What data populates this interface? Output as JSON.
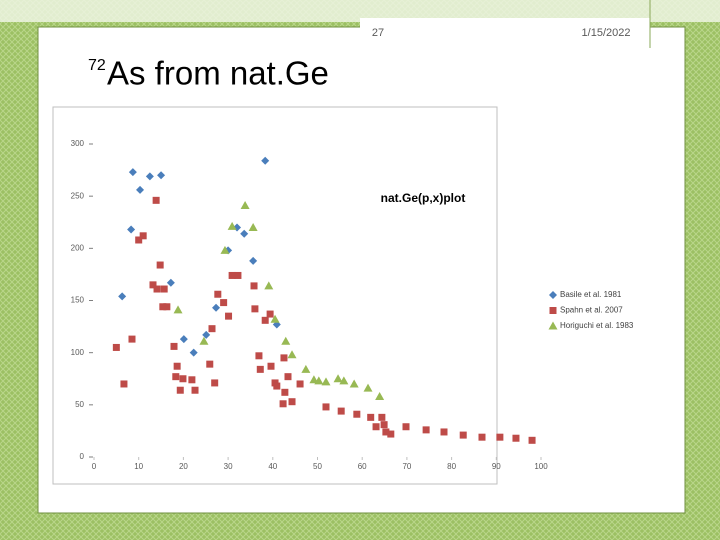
{
  "slide": {
    "number": "27",
    "date": "1/15/2022",
    "title_superscript": "72",
    "title": "As from nat.Ge"
  },
  "chart_data": {
    "type": "scatter",
    "title": "nat.Ge(p,x)plot",
    "xlim": [
      0,
      100
    ],
    "xticks": [
      0,
      10,
      20,
      30,
      40,
      50,
      60,
      70,
      80,
      90,
      100
    ],
    "ylim": [
      0,
      300
    ],
    "yticks": [
      0,
      50,
      100,
      150,
      200,
      250,
      300
    ],
    "grid": false,
    "legend": "right",
    "series": [
      {
        "name": "Basile et al. 1981",
        "color": "#4a7ebb",
        "marker": "diamond",
        "x": [
          6.3,
          8.7,
          8.3,
          10.3,
          12.5,
          15,
          17.2,
          20.1,
          22.3,
          25.1,
          27.3,
          30,
          32,
          33.6,
          35.6,
          38.3,
          40.9
        ],
        "y": [
          154,
          273,
          218,
          256,
          269,
          270,
          167,
          113,
          100,
          117,
          143,
          198,
          220,
          214,
          188,
          284,
          127
        ]
      },
      {
        "name": "Spahn et al. 2007",
        "color": "#be4b48",
        "marker": "square",
        "x": [
          5,
          6.7,
          8.5,
          10,
          11,
          13.9,
          14.8,
          13.2,
          14.1,
          15.7,
          15.4,
          16.3,
          17.9,
          18.6,
          18.3,
          19.3,
          19.9,
          21.9,
          22.6,
          25.9,
          26.4,
          27,
          27.7,
          29,
          30.1,
          30.9,
          32.2,
          35.8,
          36,
          36.9,
          37.2,
          38.3,
          39.4,
          39.6,
          40.5,
          40.9,
          42.5,
          42.3,
          42.7,
          43.4,
          44.3,
          46.1,
          51.9,
          55.3,
          58.8,
          61.9,
          63.1,
          64.4,
          64.9,
          65.3,
          66.4,
          69.8,
          74.3,
          78.3,
          82.6,
          86.8,
          90.8,
          94.4,
          98
        ],
        "y": [
          105,
          70,
          113,
          208,
          212,
          246,
          184,
          165,
          161,
          161,
          144,
          144,
          106,
          87,
          77,
          64,
          75,
          74,
          64,
          89,
          123,
          71,
          156,
          148,
          135,
          174,
          174,
          164,
          142,
          97,
          84,
          131,
          137,
          87,
          71,
          68,
          95,
          51,
          62,
          77,
          53,
          70,
          48,
          44,
          41,
          38,
          29,
          38,
          31,
          24,
          22,
          29,
          26,
          24,
          21,
          19,
          19,
          18,
          16
        ]
      },
      {
        "name": "Horiguchi et al. 1983",
        "color": "#98b954",
        "marker": "triangle",
        "x": [
          18.8,
          24.6,
          29.3,
          30.9,
          33.8,
          35.6,
          39.1,
          40.5,
          42.9,
          44.3,
          47.4,
          49.2,
          50.3,
          51.9,
          54.6,
          55.9,
          58.2,
          61.3,
          63.9
        ],
        "y": [
          141,
          111,
          198,
          221,
          241,
          220,
          164,
          132,
          111,
          98,
          84,
          74,
          73,
          72,
          75,
          73,
          70,
          66,
          58
        ]
      }
    ]
  }
}
